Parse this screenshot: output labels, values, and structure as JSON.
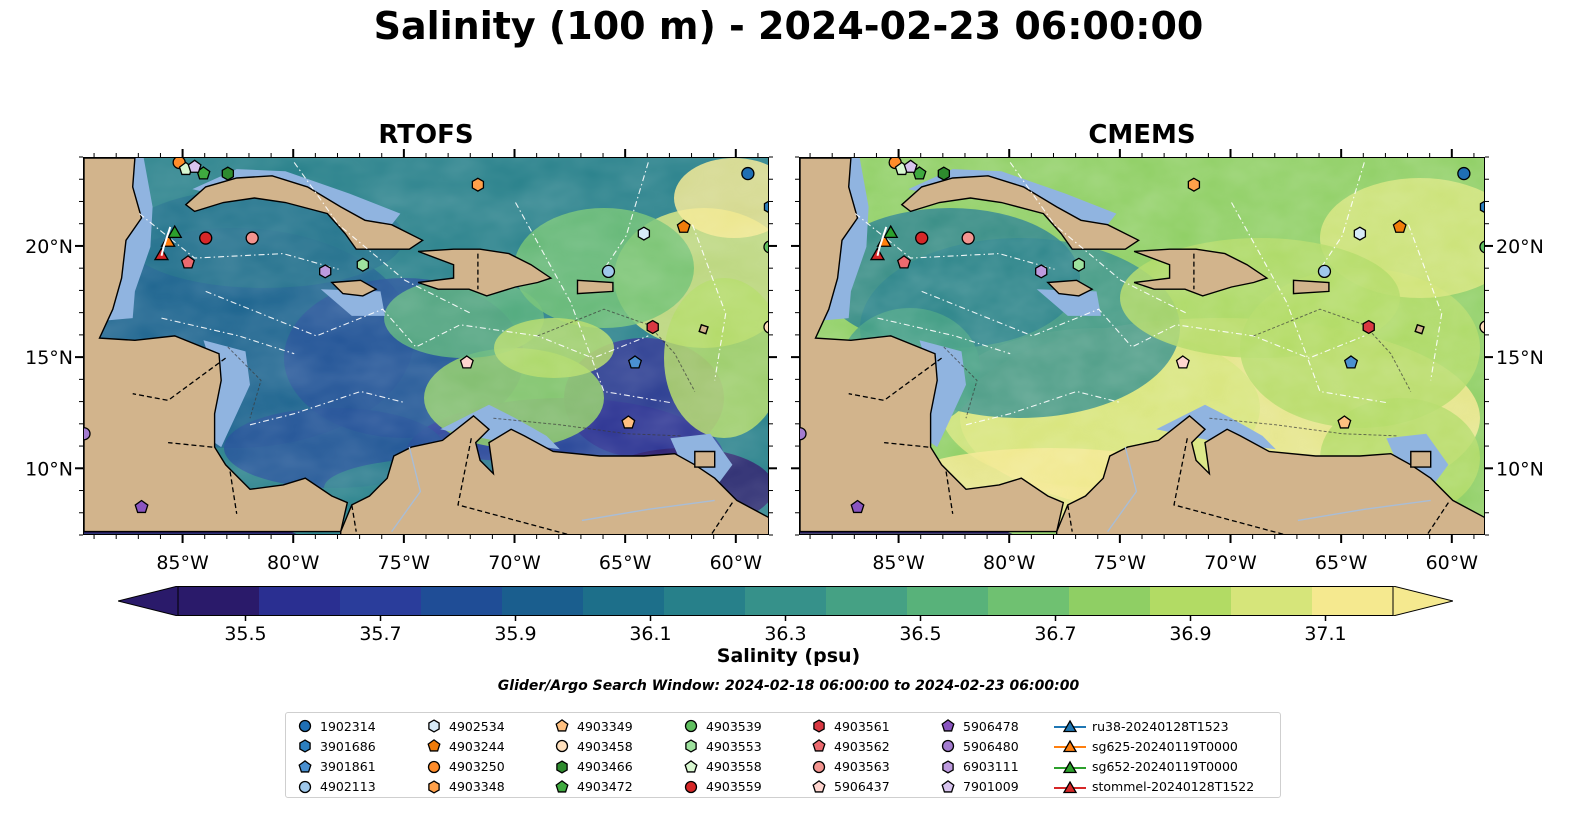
{
  "figure": {
    "title": "Salinity (100 m) - 2024-02-23 06:00:00",
    "search_window": "Glider/Argo Search Window: 2024-02-18 06:00:00 to 2024-02-23 06:00:00"
  },
  "panels": [
    {
      "title": "RTOFS"
    },
    {
      "title": "CMEMS"
    }
  ],
  "axes": {
    "lon_ticks": [
      "85°W",
      "80°W",
      "75°W",
      "70°W",
      "65°W",
      "60°W"
    ],
    "lat_ticks": [
      "20°N",
      "15°N",
      "10°N"
    ],
    "lon_range": [
      -89.5,
      -58.5
    ],
    "lat_range": [
      7,
      24
    ]
  },
  "colorbar": {
    "label": "Salinity (psu)",
    "ticks": [
      "35.5",
      "35.7",
      "35.9",
      "36.1",
      "36.3",
      "36.5",
      "36.7",
      "36.9",
      "37.1"
    ],
    "range": [
      35.4,
      37.2
    ],
    "extend": "both",
    "colors": [
      "#2a1a6a",
      "#2a2f91",
      "#2a3d9b",
      "#1f4d96",
      "#1a5e8e",
      "#1d6f8a",
      "#27808a",
      "#36918a",
      "#45a184",
      "#58b27a",
      "#6fc171",
      "#8fcf64",
      "#b2db64",
      "#d6e57a",
      "#f5e98f"
    ]
  },
  "map_colors": {
    "land": "#d2b48c",
    "shallow": "#90b4e0",
    "pacific_low": "#2a1a6a"
  },
  "legend": {
    "items": [
      {
        "label": "1902314",
        "marker": "circle",
        "color": "#1f6fb4"
      },
      {
        "label": "3901686",
        "marker": "hexagon",
        "color": "#2c7fbf"
      },
      {
        "label": "3901861",
        "marker": "pentagon",
        "color": "#4a90d0"
      },
      {
        "label": "4902113",
        "marker": "circle",
        "color": "#9fc8eb"
      },
      {
        "label": "4902534",
        "marker": "hexagon",
        "color": "#d7eaf7"
      },
      {
        "label": "4903244",
        "marker": "pentagon",
        "color": "#f07c0a"
      },
      {
        "label": "4903250",
        "marker": "circle",
        "color": "#ff8c2a"
      },
      {
        "label": "4903348",
        "marker": "hexagon",
        "color": "#ffa04a"
      },
      {
        "label": "4903349",
        "marker": "pentagon",
        "color": "#ffc080"
      },
      {
        "label": "4903458",
        "marker": "circle",
        "color": "#ffe0bd"
      },
      {
        "label": "4903466",
        "marker": "hexagon",
        "color": "#2e8b2e"
      },
      {
        "label": "4903472",
        "marker": "pentagon",
        "color": "#3fa93f"
      },
      {
        "label": "4903539",
        "marker": "circle",
        "color": "#5fbf5f"
      },
      {
        "label": "4903553",
        "marker": "hexagon",
        "color": "#9ee29e"
      },
      {
        "label": "4903558",
        "marker": "pentagon",
        "color": "#d8f7d0"
      },
      {
        "label": "4903559",
        "marker": "circle",
        "color": "#d62728"
      },
      {
        "label": "4903561",
        "marker": "hexagon",
        "color": "#d93842"
      },
      {
        "label": "4903562",
        "marker": "pentagon",
        "color": "#ec6a6f"
      },
      {
        "label": "4903563",
        "marker": "circle",
        "color": "#f3948f"
      },
      {
        "label": "5906437",
        "marker": "pentagon",
        "color": "#ffd5cf"
      },
      {
        "label": "5906478",
        "marker": "pentagon",
        "color": "#8a55c0"
      },
      {
        "label": "5906480",
        "marker": "circle",
        "color": "#a47cd0"
      },
      {
        "label": "6903111",
        "marker": "hexagon",
        "color": "#bd9ade"
      },
      {
        "label": "7901009",
        "marker": "pentagon",
        "color": "#d8c4ef"
      },
      {
        "label": "ru38-20240128T1523",
        "marker": "triangle-line",
        "color": "#1f77b4"
      },
      {
        "label": "sg625-20240119T0000",
        "marker": "triangle-line",
        "color": "#ff7f0e"
      },
      {
        "label": "sg652-20240119T0000",
        "marker": "triangle-line",
        "color": "#2ca02c"
      },
      {
        "label": "stommel-20240128T1522",
        "marker": "triangle-line",
        "color": "#d62728"
      }
    ]
  },
  "floats": [
    {
      "id": "1902314",
      "lon": -59.5,
      "lat": 23.3
    },
    {
      "id": "3901686",
      "lon": -58.5,
      "lat": 21.8
    },
    {
      "id": "3901861",
      "lon": -64.6,
      "lat": 14.8
    },
    {
      "id": "4902113",
      "lon": -65.8,
      "lat": 18.9
    },
    {
      "id": "4902534",
      "lon": -64.2,
      "lat": 20.6
    },
    {
      "id": "4903244",
      "lon": -62.4,
      "lat": 20.9
    },
    {
      "id": "4903250",
      "lon": -85.2,
      "lat": 23.8
    },
    {
      "id": "4903348",
      "lon": -71.7,
      "lat": 22.8
    },
    {
      "id": "4903349",
      "lon": -64.9,
      "lat": 12.1
    },
    {
      "id": "4903458",
      "lon": -58.5,
      "lat": 16.4
    },
    {
      "id": "4903466",
      "lon": -83.0,
      "lat": 23.3
    },
    {
      "id": "4903472",
      "lon": -84.1,
      "lat": 23.3
    },
    {
      "id": "4903539",
      "lon": -58.5,
      "lat": 20.0
    },
    {
      "id": "4903553",
      "lon": -76.9,
      "lat": 19.2
    },
    {
      "id": "4903558",
      "lon": -84.9,
      "lat": 23.5
    },
    {
      "id": "4903559",
      "lon": -84.0,
      "lat": 20.4
    },
    {
      "id": "4903561",
      "lon": -63.8,
      "lat": 16.4
    },
    {
      "id": "4903562",
      "lon": -84.8,
      "lat": 19.3
    },
    {
      "id": "4903563",
      "lon": -81.9,
      "lat": 20.4
    },
    {
      "id": "5906437",
      "lon": -72.2,
      "lat": 14.8
    },
    {
      "id": "5906478",
      "lon": -86.9,
      "lat": 8.3
    },
    {
      "id": "5906480",
      "lon": -89.5,
      "lat": 11.6
    },
    {
      "id": "6903111",
      "lon": -78.6,
      "lat": 18.9
    },
    {
      "id": "7901009",
      "lon": -84.5,
      "lat": 23.6
    }
  ],
  "gliders": [
    {
      "id": "sg625-20240119T0000",
      "lon": -85.7,
      "lat": 20.2
    },
    {
      "id": "sg652-20240119T0000",
      "lon": -85.4,
      "lat": 20.6
    },
    {
      "id": "stommel-20240128T1522",
      "lon": -86.0,
      "lat": 19.6
    }
  ]
}
